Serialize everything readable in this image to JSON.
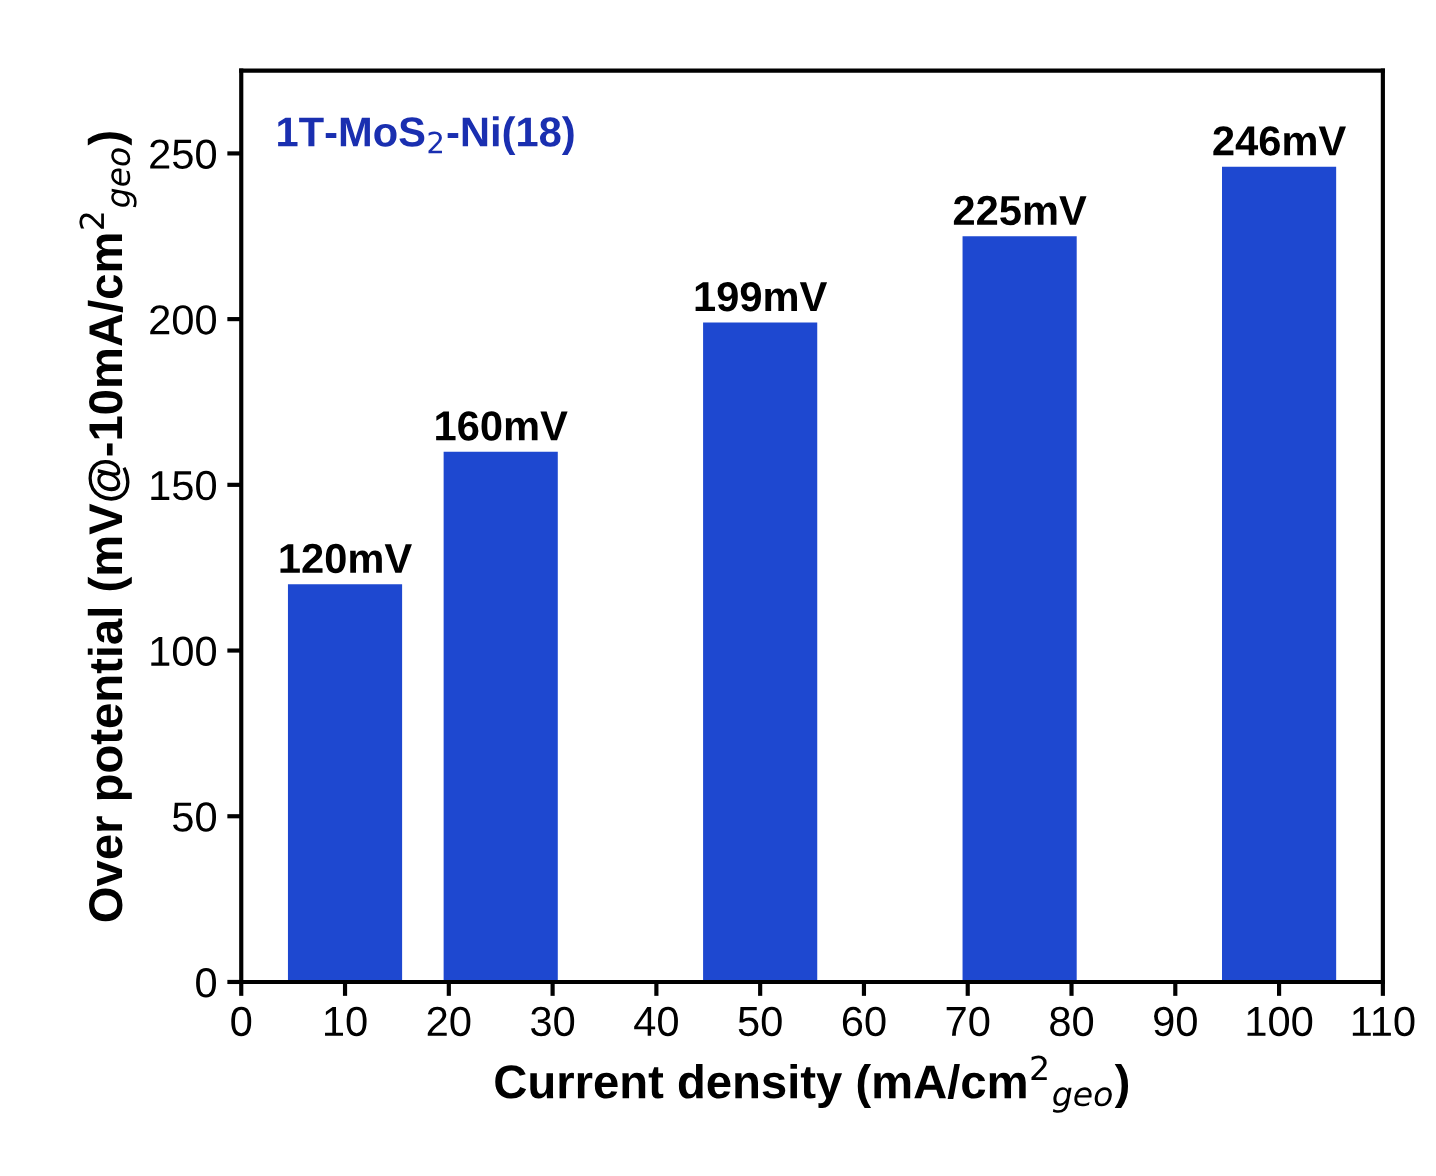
{
  "chart_data": {
    "type": "bar",
    "title": "1T-MoS$_{2}$-Ni(18)",
    "xlabel": "Current density (mA/cm$^{2}$$_{geo}$)",
    "ylabel": "Over potential (mV@-10mA/cm$^{2}$$_{geo}$)",
    "x": [
      10,
      25,
      50,
      75,
      100
    ],
    "values": [
      120,
      160,
      199,
      225,
      246
    ],
    "color": "#1e48d0",
    "value_labels": [
      "120mV",
      "160mV",
      "199mV",
      "225mV",
      "246mV"
    ],
    "xlim": [
      0,
      110
    ],
    "xticks": [
      0,
      10,
      20,
      30,
      40,
      50,
      60,
      70,
      80,
      90,
      100,
      110
    ],
    "ylim": [
      0,
      275
    ],
    "yticks": [
      0,
      50,
      100,
      150,
      200,
      250
    ],
    "grid": false,
    "legend": false
  }
}
